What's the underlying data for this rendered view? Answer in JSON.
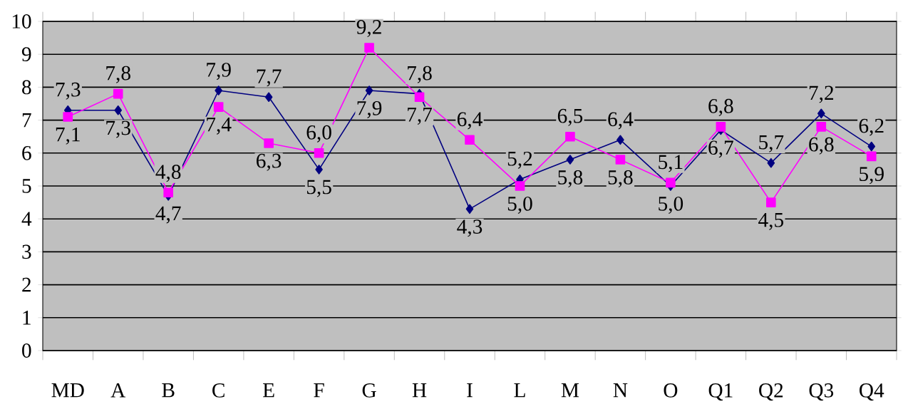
{
  "chart_data": {
    "type": "line",
    "categories": [
      "MD",
      "A",
      "B",
      "C",
      "E",
      "F",
      "G",
      "H",
      "I",
      "L",
      "M",
      "N",
      "O",
      "Q1",
      "Q2",
      "Q3",
      "Q4"
    ],
    "ylim": [
      0,
      10
    ],
    "yticks": [
      0,
      1,
      2,
      3,
      4,
      5,
      6,
      7,
      8,
      9,
      10
    ],
    "grid": "y",
    "series": [
      {
        "color": "#000080",
        "marker": "diamond",
        "values": [
          7.3,
          7.3,
          4.7,
          7.9,
          7.7,
          5.5,
          7.9,
          7.8,
          4.3,
          5.2,
          5.8,
          6.4,
          5.0,
          6.7,
          5.7,
          7.2,
          6.2
        ],
        "value_labels": [
          "7,3",
          "7,3",
          "4,7",
          "7,9",
          "7,7",
          "5,5",
          "7,9",
          "7,8",
          "4,3",
          "5,2",
          "5,8",
          "6,4",
          "5,0",
          "6,7",
          "5,7",
          "7,2",
          "6,2"
        ]
      },
      {
        "color": "#ff00ff",
        "marker": "square",
        "values": [
          7.1,
          7.8,
          4.8,
          7.4,
          6.3,
          6.0,
          9.2,
          7.7,
          6.4,
          5.0,
          6.5,
          5.8,
          5.1,
          6.8,
          4.5,
          6.8,
          5.9
        ],
        "value_labels": [
          "7,1",
          "7,8",
          "4,8",
          "7,4",
          "6,3",
          "6,0",
          "9,2",
          "7,7",
          "6,4",
          "5,0",
          "6,5",
          "5,8",
          "5,1",
          "6,8",
          "4,5",
          "6,8",
          "5,9"
        ]
      }
    ]
  }
}
